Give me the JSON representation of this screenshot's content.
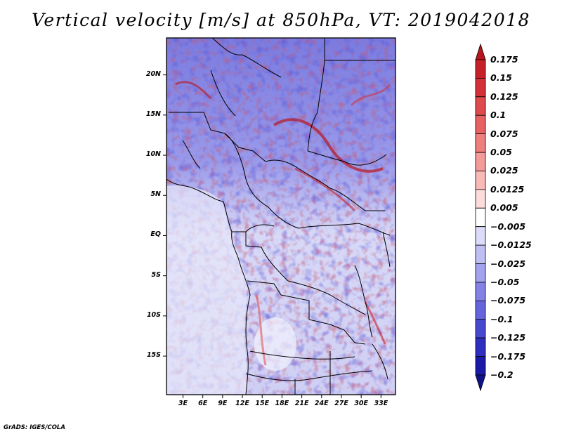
{
  "title": "Vertical velocity [m/s] at 850hPa, VT: 2019042018",
  "footer": "GrADS: IGES/COLA",
  "map": {
    "type": "heatmap",
    "variable": "Vertical velocity",
    "units": "m/s",
    "level": "850hPa",
    "valid_time": "2019042018",
    "lat_labels": [
      "20N",
      "15N",
      "10N",
      "5N",
      "EQ",
      "5S",
      "10S",
      "15S"
    ],
    "lat_values": [
      20,
      15,
      10,
      5,
      0,
      -5,
      -10,
      -15
    ],
    "lon_labels": [
      "3E",
      "6E",
      "9E",
      "12E",
      "15E",
      "18E",
      "21E",
      "24E",
      "27E",
      "30E",
      "33E"
    ],
    "lon_values": [
      3,
      6,
      9,
      12,
      15,
      18,
      21,
      24,
      27,
      30,
      33
    ],
    "lon_range": [
      0.5,
      35.2
    ],
    "lat_range": [
      -19.8,
      24.6
    ]
  },
  "colorbar": {
    "labels": [
      "0.175",
      "0.15",
      "0.125",
      "0.1",
      "0.075",
      "0.05",
      "0.025",
      "0.0125",
      "0.005",
      "−0.005",
      "−0.0125",
      "−0.025",
      "−0.05",
      "−0.075",
      "−0.1",
      "−0.125",
      "−0.175",
      "−0.2"
    ],
    "colors": [
      "#b8151f",
      "#c62129",
      "#d43037",
      "#df4a4c",
      "#e76363",
      "#ee7f7d",
      "#f39b98",
      "#f8bab7",
      "#fcdcda",
      "#ffffff",
      "#dcdcfa",
      "#bfbff4",
      "#a2a2ee",
      "#8383e6",
      "#6464dc",
      "#4848cf",
      "#2e2ebf",
      "#1a1aa7",
      "#10108a"
    ]
  }
}
